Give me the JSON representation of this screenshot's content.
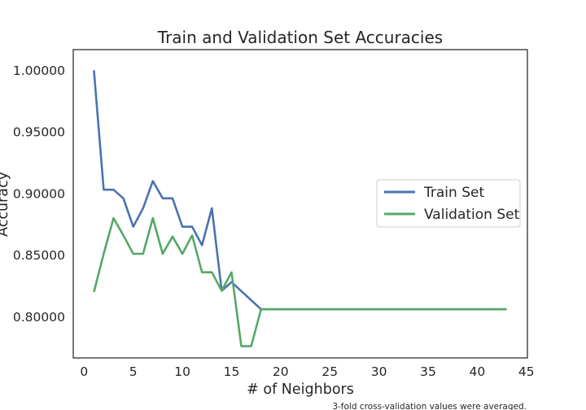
{
  "chart_data": {
    "type": "line",
    "title": "Train and Validation Set Accuracies",
    "xlabel": "# of Neighbors",
    "ylabel": "Accuracy",
    "xlim": [
      -1.1,
      45.1
    ],
    "ylim": [
      0.7665,
      1.0167
    ],
    "x_ticks": [
      0,
      5,
      10,
      15,
      20,
      25,
      30,
      35,
      40,
      45
    ],
    "y_ticks": [
      0.8,
      0.85,
      0.9,
      0.95,
      1.0
    ],
    "y_tick_labels": [
      "0.80000",
      "0.85000",
      "0.90000",
      "0.95000",
      "1.00000"
    ],
    "grid": false,
    "legend_position": "center-right",
    "series": [
      {
        "name": "Train Set",
        "color": "#4c72b0",
        "points": [
          [
            1,
            1.0
          ],
          [
            2,
            0.903
          ],
          [
            3,
            0.903
          ],
          [
            4,
            0.896
          ],
          [
            5,
            0.873
          ],
          [
            6,
            0.888
          ],
          [
            7,
            0.91
          ],
          [
            8,
            0.896
          ],
          [
            9,
            0.896
          ],
          [
            10,
            0.873
          ],
          [
            11,
            0.873
          ],
          [
            12,
            0.858
          ],
          [
            13,
            0.888
          ],
          [
            14,
            0.821
          ],
          [
            15,
            0.828
          ],
          [
            18,
            0.806
          ],
          [
            43,
            0.806
          ]
        ]
      },
      {
        "name": "Validation Set",
        "color": "#55a868",
        "points": [
          [
            1,
            0.82
          ],
          [
            2,
            0.851
          ],
          [
            3,
            0.88
          ],
          [
            4,
            0.866
          ],
          [
            5,
            0.851
          ],
          [
            6,
            0.851
          ],
          [
            7,
            0.88
          ],
          [
            8,
            0.851
          ],
          [
            9,
            0.865
          ],
          [
            10,
            0.851
          ],
          [
            11,
            0.866
          ],
          [
            12,
            0.836
          ],
          [
            13,
            0.836
          ],
          [
            14,
            0.821
          ],
          [
            15,
            0.836
          ],
          [
            16,
            0.776
          ],
          [
            17,
            0.776
          ],
          [
            18,
            0.806
          ],
          [
            43,
            0.806
          ]
        ]
      }
    ],
    "footnote": "3-fold cross-validation values were averaged."
  }
}
